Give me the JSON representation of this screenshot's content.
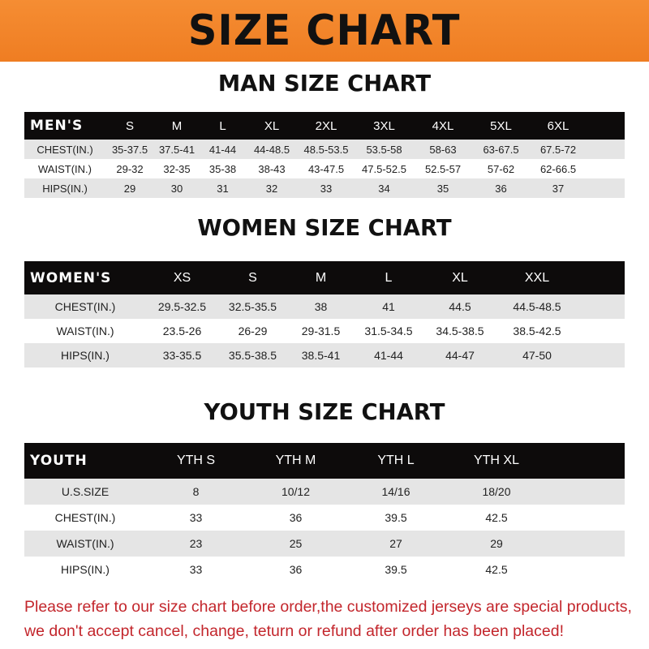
{
  "banner": {
    "title": "SIZE CHART"
  },
  "men": {
    "title": "MAN SIZE CHART",
    "header": [
      "MEN'S",
      "S",
      "M",
      "L",
      "XL",
      "2XL",
      "3XL",
      "4XL",
      "5XL",
      "6XL"
    ],
    "rows": [
      [
        "CHEST(IN.)",
        "35-37.5",
        "37.5-41",
        "41-44",
        "44-48.5",
        "48.5-53.5",
        "53.5-58",
        "58-63",
        "63-67.5",
        "67.5-72"
      ],
      [
        "WAIST(IN.)",
        "29-32",
        "32-35",
        "35-38",
        "38-43",
        "43-47.5",
        "47.5-52.5",
        "52.5-57",
        "57-62",
        "62-66.5"
      ],
      [
        "HIPS(IN.)",
        "29",
        "30",
        "31",
        "32",
        "33",
        "34",
        "35",
        "36",
        "37"
      ]
    ]
  },
  "women": {
    "title": "WOMEN SIZE CHART",
    "header": [
      "WOMEN'S",
      "XS",
      "S",
      "M",
      "L",
      "XL",
      "XXL"
    ],
    "rows": [
      [
        "CHEST(IN.)",
        "29.5-32.5",
        "32.5-35.5",
        "38",
        "41",
        "44.5",
        "44.5-48.5"
      ],
      [
        "WAIST(IN.)",
        "23.5-26",
        "26-29",
        "29-31.5",
        "31.5-34.5",
        "34.5-38.5",
        "38.5-42.5"
      ],
      [
        "HIPS(IN.)",
        "33-35.5",
        "35.5-38.5",
        "38.5-41",
        "41-44",
        "44-47",
        "47-50"
      ]
    ]
  },
  "youth": {
    "title": "YOUTH SIZE CHART",
    "header": [
      "YOUTH",
      "YTH S",
      "YTH M",
      "YTH L",
      "YTH XL"
    ],
    "rows": [
      [
        "U.S.SIZE",
        "8",
        "10/12",
        "14/16",
        "18/20"
      ],
      [
        "CHEST(IN.)",
        "33",
        "36",
        "39.5",
        "42.5"
      ],
      [
        "WAIST(IN.)",
        "23",
        "25",
        "27",
        "29"
      ],
      [
        "HIPS(IN.)",
        "33",
        "36",
        "39.5",
        "42.5"
      ]
    ]
  },
  "note": {
    "line1": "Please refer to our size chart before order,the customized jerseys are special products,",
    "line2": "we don't accept cancel, change, teturn or refund after order has been placed!"
  },
  "colors": {
    "banner": "#f28529",
    "header_row": "#0d0b0b",
    "stripe": "#e5e5e5",
    "note": "#c3262c"
  }
}
